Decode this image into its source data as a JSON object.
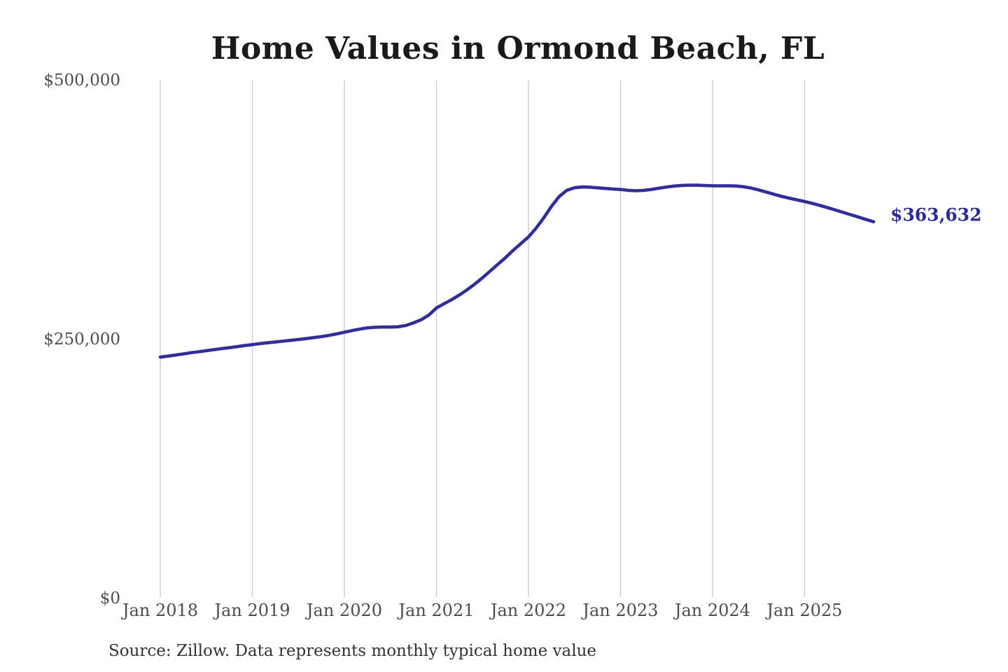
{
  "chart_data": {
    "type": "line",
    "title": "Home Values in Ormond Beach, FL",
    "source_note": "Source: Zillow. Data represents monthly typical home value",
    "series_name": "Monthly typical home value",
    "end_label": "$363,632",
    "latest_value": 363632,
    "ylim": [
      0,
      500000
    ],
    "grid": "vertical-only",
    "legend": "none",
    "y_ticks": [
      {
        "value": 0,
        "label": "$0"
      },
      {
        "value": 250000,
        "label": "$250,000"
      },
      {
        "value": 500000,
        "label": "$500,000"
      }
    ],
    "x_tick_labels": [
      "Jan 2018",
      "Jan 2019",
      "Jan 2020",
      "Jan 2021",
      "Jan 2022",
      "Jan 2023",
      "Jan 2024",
      "Jan 2025"
    ],
    "x": [
      "2018-01",
      "2018-02",
      "2018-03",
      "2018-04",
      "2018-05",
      "2018-06",
      "2018-07",
      "2018-08",
      "2018-09",
      "2018-10",
      "2018-11",
      "2018-12",
      "2019-01",
      "2019-02",
      "2019-03",
      "2019-04",
      "2019-05",
      "2019-06",
      "2019-07",
      "2019-08",
      "2019-09",
      "2019-10",
      "2019-11",
      "2019-12",
      "2020-01",
      "2020-02",
      "2020-03",
      "2020-04",
      "2020-05",
      "2020-06",
      "2020-07",
      "2020-08",
      "2020-09",
      "2020-10",
      "2020-11",
      "2020-12",
      "2021-01",
      "2021-02",
      "2021-03",
      "2021-04",
      "2021-05",
      "2021-06",
      "2021-07",
      "2021-08",
      "2021-09",
      "2021-10",
      "2021-11",
      "2021-12",
      "2022-01",
      "2022-02",
      "2022-03",
      "2022-04",
      "2022-05",
      "2022-06",
      "2022-07",
      "2022-08",
      "2022-09",
      "2022-10",
      "2022-11",
      "2022-12",
      "2023-01",
      "2023-02",
      "2023-03",
      "2023-04",
      "2023-05",
      "2023-06",
      "2023-07",
      "2023-08",
      "2023-09",
      "2023-10",
      "2023-11",
      "2023-12",
      "2024-01",
      "2024-02",
      "2024-03",
      "2024-04",
      "2024-05",
      "2024-06",
      "2024-07",
      "2024-08",
      "2024-09",
      "2024-10",
      "2024-11",
      "2024-12",
      "2025-01",
      "2025-02",
      "2025-03",
      "2025-04",
      "2025-05",
      "2025-06",
      "2025-07",
      "2025-08",
      "2025-09",
      "2025-10"
    ],
    "values": [
      233000,
      234000,
      235000,
      236100,
      237200,
      238200,
      239200,
      240200,
      241200,
      242100,
      243100,
      244100,
      245100,
      246000,
      246800,
      247600,
      248400,
      249200,
      250000,
      250900,
      251800,
      252800,
      254000,
      255400,
      257000,
      258600,
      260100,
      261200,
      261800,
      262000,
      262000,
      262300,
      263500,
      266000,
      269000,
      273500,
      280500,
      284500,
      288500,
      293000,
      298000,
      303500,
      309500,
      316000,
      322500,
      329000,
      336000,
      342500,
      349000,
      357500,
      367500,
      378500,
      388000,
      394000,
      396500,
      397200,
      397000,
      396400,
      395800,
      395300,
      394800,
      394000,
      393600,
      393900,
      394800,
      396000,
      397200,
      398100,
      398700,
      399000,
      398900,
      398600,
      398400,
      398300,
      398400,
      398200,
      397500,
      396200,
      394400,
      392300,
      390200,
      388200,
      386400,
      384800,
      383200,
      381400,
      379400,
      377300,
      375100,
      372800,
      370500,
      368200,
      365900,
      363632
    ]
  },
  "colors": {
    "line": "#322e99",
    "end_label": "#2e2a96",
    "grid": "#cccccc",
    "title": "#1a1a1a",
    "axis_labels": "#4d4d4d",
    "source": "#333333",
    "background": "#ffffff"
  }
}
